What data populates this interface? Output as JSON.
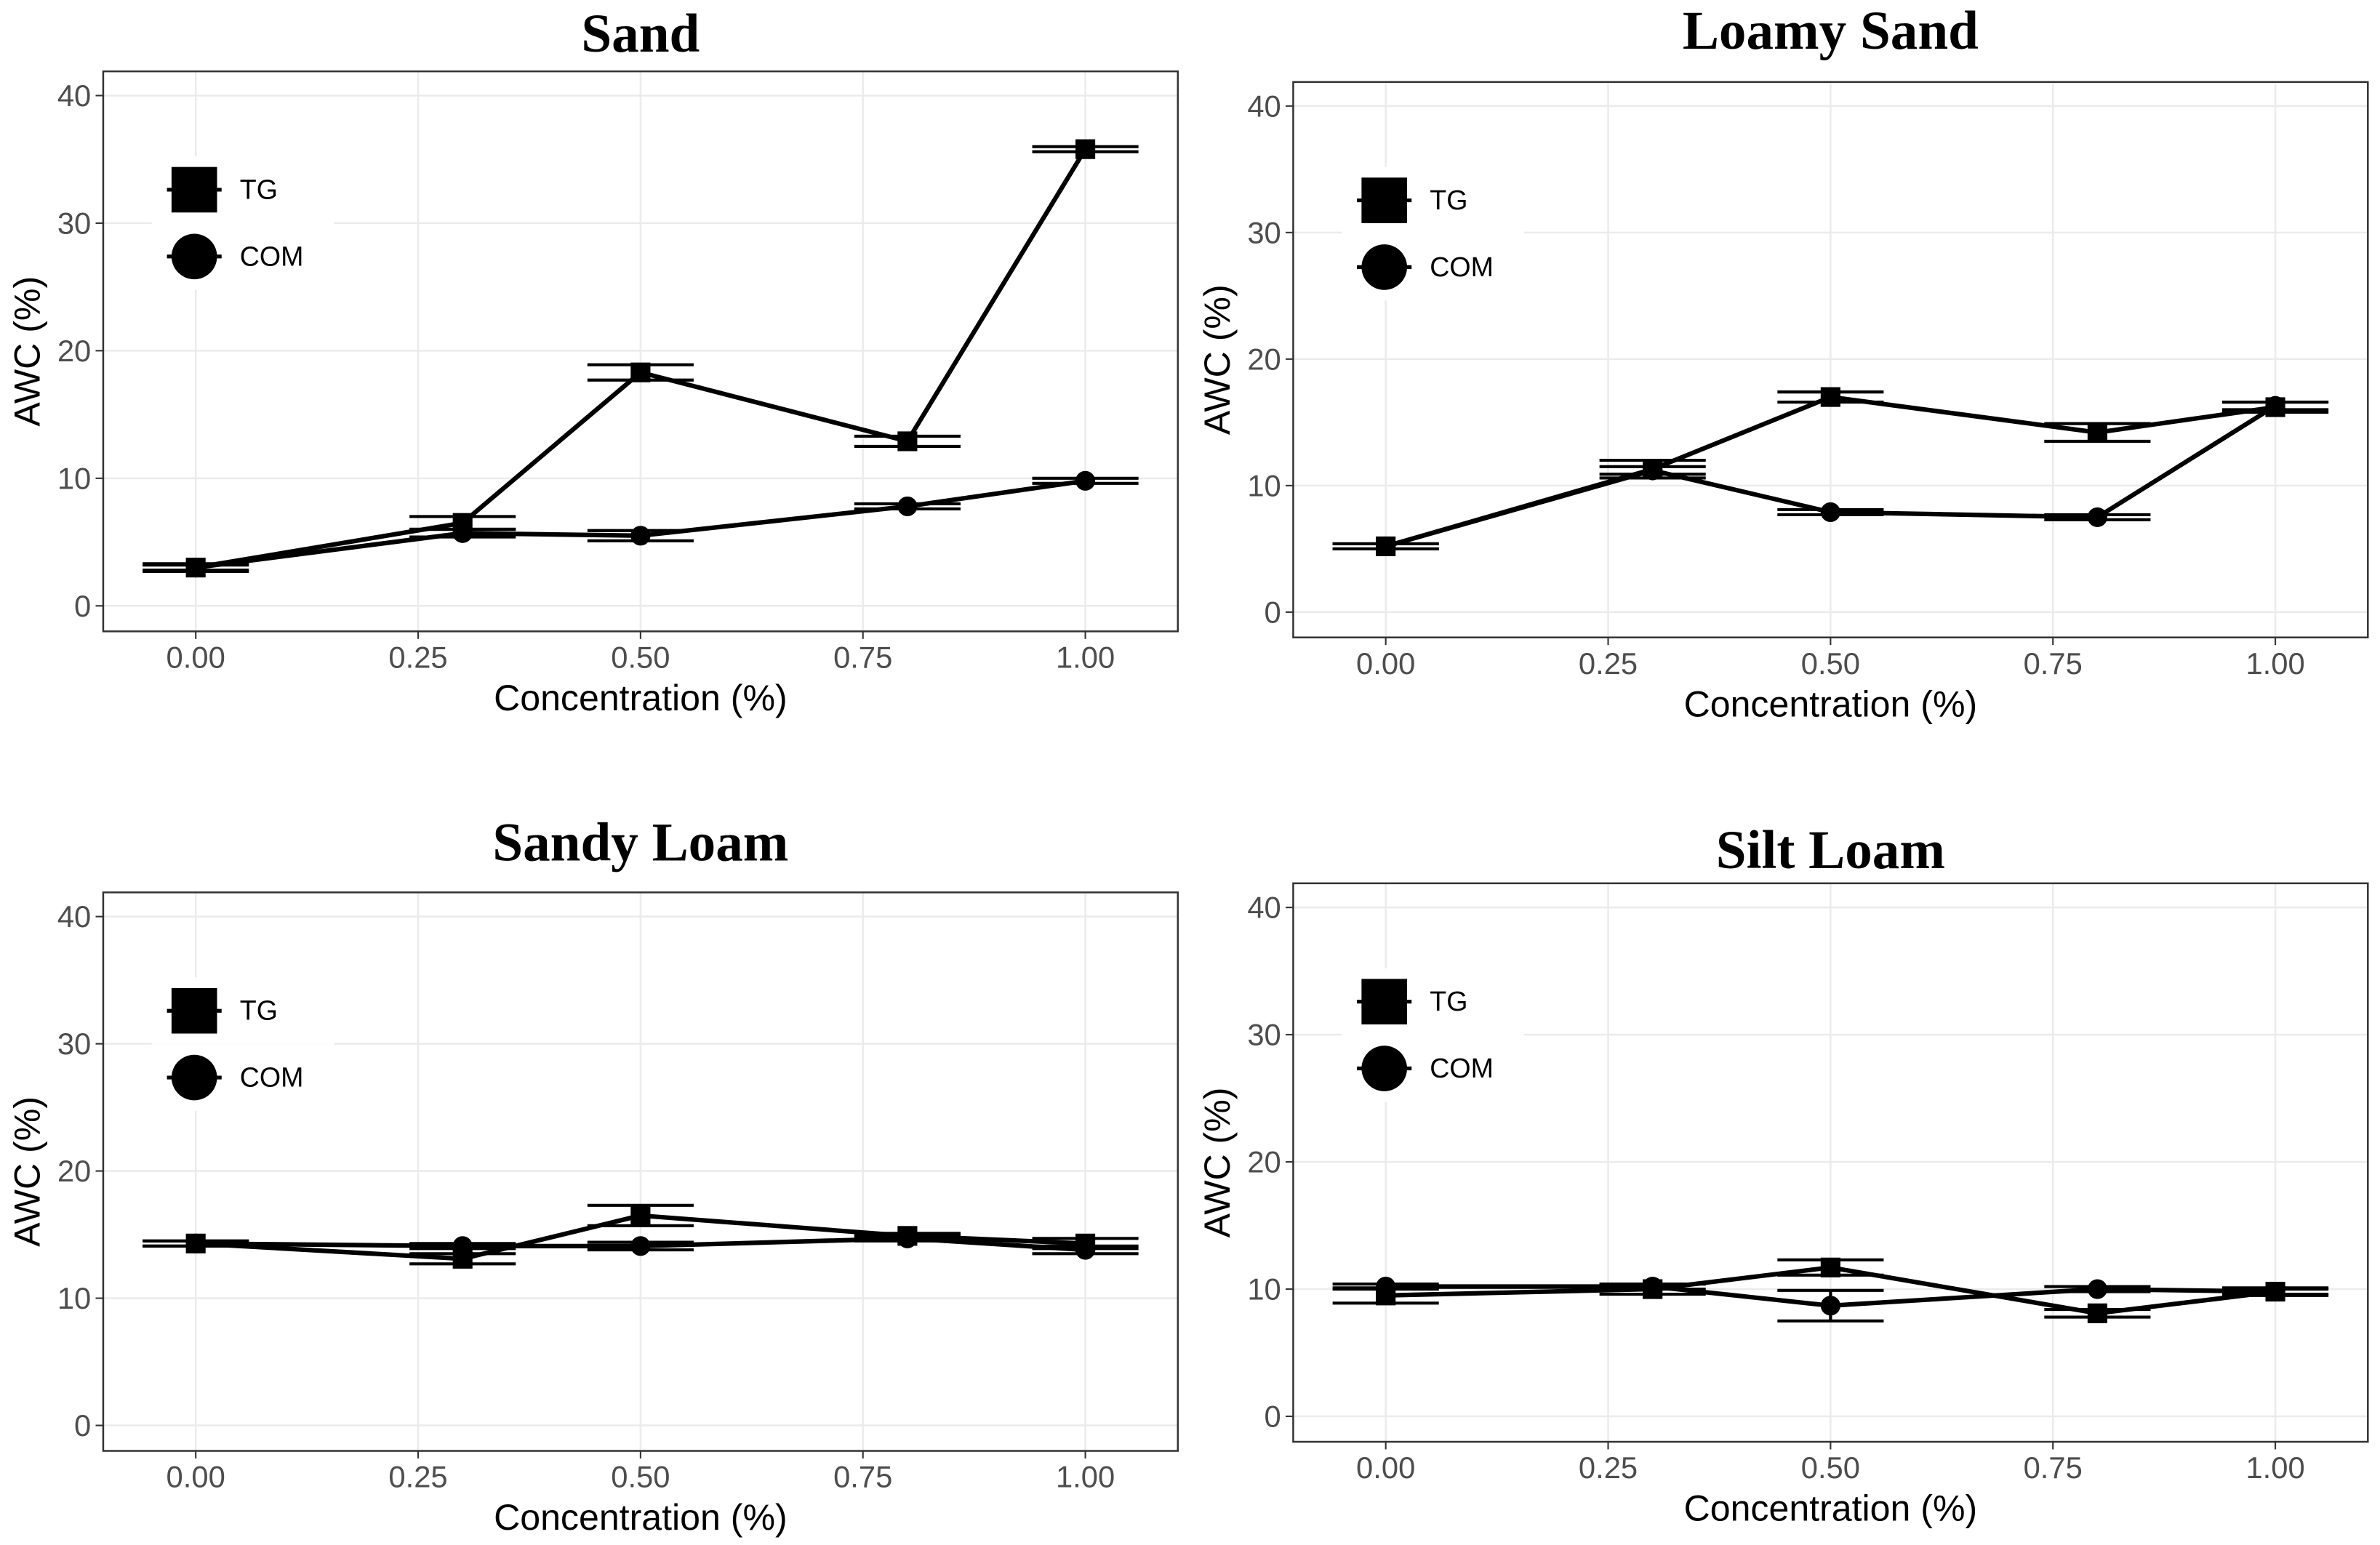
{
  "chart_data": [
    {
      "type": "line",
      "title": "Sand",
      "x_label": "Concentration  (%)",
      "y_label": "AWC (%)",
      "x": [
        0,
        0.3,
        0.5,
        0.8,
        1.0
      ],
      "series": [
        {
          "name": "TG",
          "marker": "square",
          "color": "#000000",
          "values": [
            3.0,
            6.5,
            18.3,
            12.9,
            35.8
          ],
          "errors": [
            0.3,
            0.5,
            0.6,
            0.4,
            0.2
          ]
        },
        {
          "name": "COM",
          "marker": "circle",
          "color": "#000000",
          "values": [
            3.0,
            5.7,
            5.5,
            7.8,
            9.8
          ],
          "errors": [
            0.2,
            0.3,
            0.4,
            0.2,
            0.2
          ]
        }
      ],
      "xlim": [
        -0.104,
        1.104
      ],
      "ylim": [
        -2.0,
        41.9
      ],
      "xticks": [
        {
          "value": 0,
          "label": "0.00"
        },
        {
          "value": 0.25,
          "label": "0.25"
        },
        {
          "value": 0.5,
          "label": "0.50"
        },
        {
          "value": 0.75,
          "label": "0.75"
        },
        {
          "value": 1,
          "label": "1.00"
        }
      ],
      "yticks": [
        0,
        10,
        20,
        30,
        40
      ],
      "grid": true
    },
    {
      "type": "line",
      "title": "Loamy Sand",
      "x_label": "Concentration  (%)",
      "y_label": "AWC (%)",
      "x": [
        0,
        0.3,
        0.5,
        0.8,
        1.0
      ],
      "series": [
        {
          "name": "TG",
          "marker": "square",
          "color": "#000000",
          "values": [
            5.2,
            11.3,
            17.0,
            14.2,
            16.2
          ],
          "errors": [
            0.2,
            0.7,
            0.4,
            0.7,
            0.4
          ]
        },
        {
          "name": "COM",
          "marker": "circle",
          "color": "#000000",
          "values": [
            5.2,
            11.2,
            7.9,
            7.5,
            16.3
          ],
          "errors": [
            0.2,
            0.3,
            0.2,
            0.2,
            0.3
          ]
        }
      ],
      "xlim": [
        -0.104,
        1.104
      ],
      "ylim": [
        -2.0,
        41.9
      ],
      "xticks": [
        {
          "value": 0,
          "label": "0.00"
        },
        {
          "value": 0.25,
          "label": "0.25"
        },
        {
          "value": 0.5,
          "label": "0.50"
        },
        {
          "value": 0.75,
          "label": "0.75"
        },
        {
          "value": 1,
          "label": "1.00"
        }
      ],
      "yticks": [
        0,
        10,
        20,
        30,
        40
      ],
      "grid": true
    },
    {
      "type": "line",
      "title": "Sandy Loam",
      "x_label": "Concentration  (%)",
      "y_label": "AWC (%)",
      "x": [
        0,
        0.3,
        0.5,
        0.8,
        1.0
      ],
      "series": [
        {
          "name": "TG",
          "marker": "square",
          "color": "#000000",
          "values": [
            14.3,
            13.1,
            16.5,
            14.9,
            14.3
          ],
          "errors": [
            0.2,
            0.4,
            0.8,
            0.2,
            0.4
          ]
        },
        {
          "name": "COM",
          "marker": "circle",
          "color": "#000000",
          "values": [
            14.3,
            14.1,
            14.1,
            14.7,
            13.8
          ],
          "errors": [
            0.2,
            0.2,
            0.3,
            0.2,
            0.3
          ]
        }
      ],
      "xlim": [
        -0.104,
        1.104
      ],
      "ylim": [
        -2.0,
        41.9
      ],
      "xticks": [
        {
          "value": 0,
          "label": "0.00"
        },
        {
          "value": 0.25,
          "label": "0.25"
        },
        {
          "value": 0.5,
          "label": "0.50"
        },
        {
          "value": 0.75,
          "label": "0.75"
        },
        {
          "value": 1,
          "label": "1.00"
        }
      ],
      "yticks": [
        0,
        10,
        20,
        30,
        40
      ],
      "grid": true
    },
    {
      "type": "line",
      "title": "Silt Loam",
      "x_label": "Concentration  (%)",
      "y_label": "AWC (%)",
      "x": [
        0,
        0.3,
        0.5,
        0.8,
        1.0
      ],
      "series": [
        {
          "name": "TG",
          "marker": "square",
          "color": "#000000",
          "values": [
            9.5,
            10.0,
            11.7,
            8.1,
            9.8
          ],
          "errors": [
            0.6,
            0.4,
            0.6,
            0.3,
            0.3
          ]
        },
        {
          "name": "COM",
          "marker": "circle",
          "color": "#000000",
          "values": [
            10.2,
            10.2,
            8.7,
            10.0,
            9.8
          ],
          "errors": [
            0.2,
            0.2,
            1.2,
            0.2,
            0.2
          ]
        }
      ],
      "xlim": [
        -0.104,
        1.104
      ],
      "ylim": [
        -2.0,
        41.9
      ],
      "xticks": [
        {
          "value": 0,
          "label": "0.00"
        },
        {
          "value": 0.25,
          "label": "0.25"
        },
        {
          "value": 0.5,
          "label": "0.50"
        },
        {
          "value": 0.75,
          "label": "0.75"
        },
        {
          "value": 1,
          "label": "1.00"
        }
      ],
      "yticks": [
        0,
        10,
        20,
        30,
        40
      ],
      "grid": true
    }
  ]
}
